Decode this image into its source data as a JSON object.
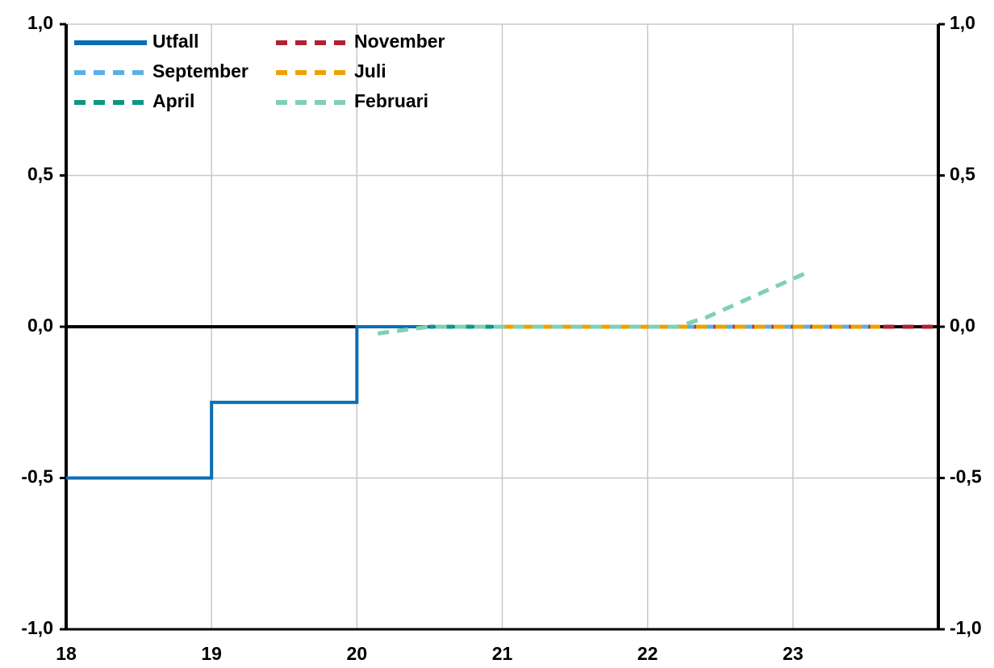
{
  "chart_data": {
    "type": "line",
    "xlim": [
      18,
      24
    ],
    "xticks": [
      18,
      19,
      20,
      21,
      22,
      23
    ],
    "ylim": [
      -1,
      1
    ],
    "yticks": [
      {
        "value": -1,
        "label": "-1,0"
      },
      {
        "value": -0.5,
        "label": "-0,5"
      },
      {
        "value": 0,
        "label": "0,0"
      },
      {
        "value": 0.5,
        "label": "0,5"
      },
      {
        "value": 1,
        "label": "1,0"
      }
    ],
    "y2lim": [
      -1,
      1
    ],
    "y2ticks": [
      {
        "value": -1,
        "label": "-1,0"
      },
      {
        "value": -0.5,
        "label": "-0,5"
      },
      {
        "value": 0,
        "label": "0,0"
      },
      {
        "value": 0.5,
        "label": "0,5"
      },
      {
        "value": 1,
        "label": "1,0"
      }
    ],
    "grid": true,
    "legend": "top-left",
    "series": [
      {
        "name": "Utfall",
        "color": "#0a6eb4",
        "style": "solid",
        "x": [
          18,
          19,
          19,
          20,
          20,
          21
        ],
        "values": [
          -0.5,
          -0.5,
          -0.25,
          -0.25,
          0,
          0
        ]
      },
      {
        "name": "November",
        "color": "#b22033",
        "style": "dashed",
        "x": [
          21,
          24
        ],
        "values": [
          0,
          0
        ]
      },
      {
        "name": "September",
        "color": "#5aafe6",
        "style": "dashed",
        "x": [
          21,
          23.6
        ],
        "values": [
          0,
          0
        ]
      },
      {
        "name": "Juli",
        "color": "#f0a000",
        "style": "dashed",
        "x": [
          21,
          23.6
        ],
        "values": [
          0,
          0
        ]
      },
      {
        "name": "April",
        "color": "#0f9683",
        "style": "dashed",
        "x": [
          20.5,
          21
        ],
        "values": [
          0,
          0
        ]
      },
      {
        "name": "Februari",
        "color": "#7fd0b4",
        "style": "dashed",
        "x": [
          20.1,
          20.5,
          22.2,
          22.4,
          23.1
        ],
        "values": [
          -0.025,
          0,
          0,
          0.03,
          0.18
        ]
      }
    ]
  }
}
